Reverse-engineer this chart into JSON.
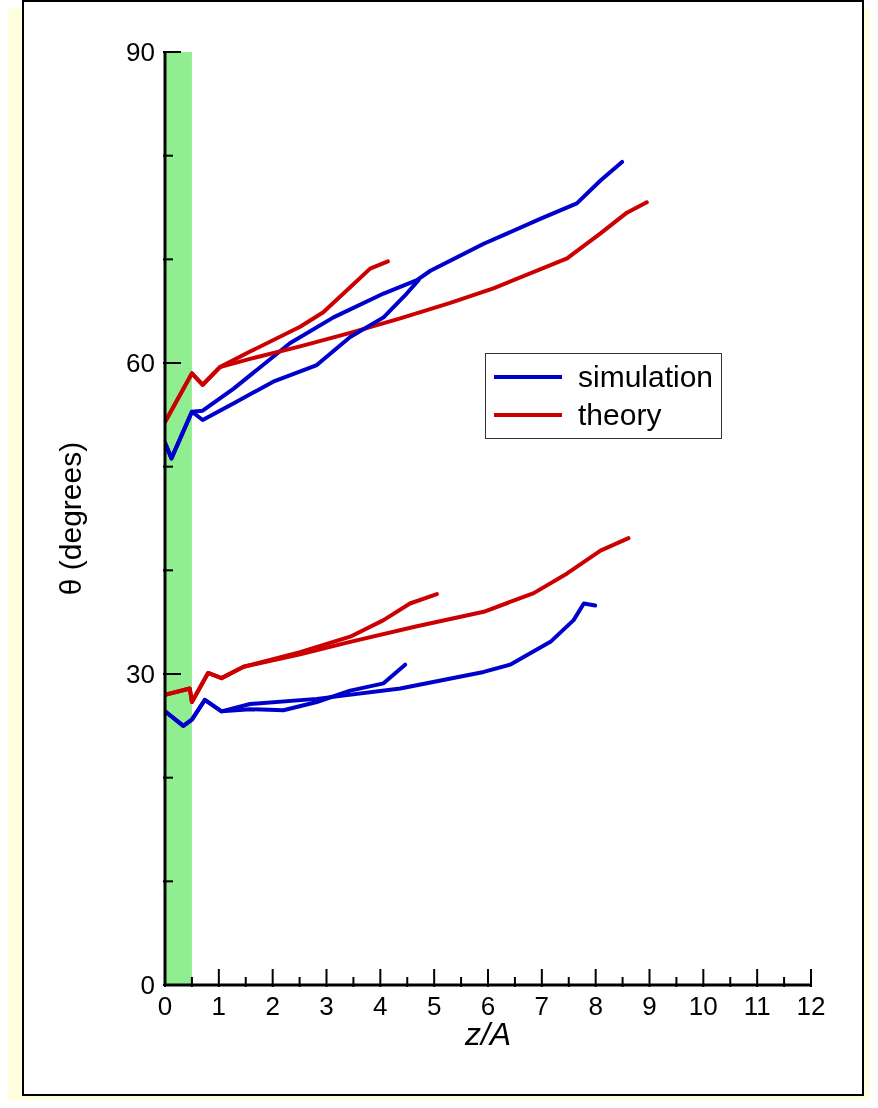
{
  "chart_data": {
    "type": "line",
    "xlabel": "z/A",
    "ylabel": "θ (degrees)",
    "xlim": [
      0,
      12
    ],
    "ylim": [
      0,
      90
    ],
    "xticks": [
      0,
      {
        "value": 0.5,
        "label": null
      },
      1,
      {
        "value": 1.5,
        "label": null
      },
      2,
      {
        "value": 2.5,
        "label": null
      },
      3,
      {
        "value": 3.5,
        "label": null
      },
      4,
      {
        "value": 4.5,
        "label": null
      },
      5,
      {
        "value": 5.5,
        "label": null
      },
      6,
      {
        "value": 6.5,
        "label": null
      },
      7,
      {
        "value": 7.5,
        "label": null
      },
      8,
      {
        "value": 8.5,
        "label": null
      },
      9,
      {
        "value": 9.5,
        "label": null
      },
      10,
      {
        "value": 10.5,
        "label": null
      },
      11,
      {
        "value": 11.5,
        "label": null
      },
      12
    ],
    "yticks": [
      0,
      {
        "value": 10,
        "label": null
      },
      {
        "value": 20,
        "label": null
      },
      30,
      {
        "value": 40,
        "label": null
      },
      {
        "value": 50,
        "label": null
      },
      60,
      {
        "value": 70,
        "label": null
      },
      {
        "value": 80,
        "label": null
      },
      90
    ],
    "legend": "right",
    "grid": false,
    "marker": "none",
    "line_style": "solid",
    "bands": [
      {
        "axis": "x",
        "from": 0,
        "to": 0.5,
        "color": "#90ee90"
      }
    ],
    "series": [
      {
        "name": "simulation",
        "color": "#0000cc",
        "x": [
          0,
          0.12,
          0.5,
          0.7,
          1.27,
          2.32,
          3.13,
          4.06,
          4.68,
          4.93,
          5.92,
          6.97,
          7.65,
          8.09,
          8.49
        ],
        "values": [
          52.3,
          50.8,
          55.3,
          55.4,
          57.5,
          61.9,
          64.4,
          66.7,
          68.0,
          68.9,
          71.5,
          73.9,
          75.4,
          77.6,
          79.4
        ]
      },
      {
        "name": "theory",
        "color": "#cc0000",
        "x": [
          0,
          0.5,
          0.7,
          1.02,
          1.58,
          2.51,
          3.44,
          4.37,
          5.3,
          6.1,
          7.47,
          8.09,
          8.58,
          8.95
        ],
        "values": [
          54.3,
          59.0,
          57.9,
          59.6,
          60.4,
          61.6,
          62.9,
          64.3,
          65.8,
          67.2,
          70.1,
          72.5,
          74.5,
          75.5
        ]
      },
      {
        "color": "#0000cc",
        "x": [
          0,
          0.12,
          0.5,
          0.7,
          1.27,
          2.01,
          2.82,
          3.44,
          4.06,
          4.49,
          4.71
        ],
        "values": [
          52.3,
          50.8,
          55.3,
          54.5,
          56.1,
          58.2,
          59.8,
          62.5,
          64.4,
          66.7,
          68.0
        ]
      },
      {
        "color": "#cc0000",
        "x": [
          0,
          0.5,
          0.7,
          1.02,
          1.58,
          2.51,
          2.94,
          3.44,
          3.81,
          4.14
        ],
        "values": [
          54.3,
          59.0,
          57.9,
          59.6,
          61.1,
          63.5,
          64.9,
          67.3,
          69.1,
          69.8
        ]
      },
      {
        "color": "#0000cc",
        "x": [
          0,
          0.34,
          0.5,
          0.74,
          1.05,
          1.58,
          2.82,
          4.37,
          5.92,
          6.41,
          7.16,
          7.59,
          7.78,
          7.99
        ],
        "values": [
          26.4,
          25.0,
          25.6,
          27.5,
          26.4,
          27.1,
          27.6,
          28.6,
          30.2,
          30.9,
          33.1,
          35.2,
          36.8,
          36.6
        ]
      },
      {
        "color": "#0000cc",
        "x": [
          0,
          0.34,
          0.5,
          0.74,
          1.05,
          1.58,
          2.2,
          2.82,
          3.44,
          4.06,
          4.46
        ],
        "values": [
          26.4,
          25.0,
          25.6,
          27.5,
          26.4,
          26.6,
          26.5,
          27.3,
          28.4,
          29.1,
          30.9
        ]
      },
      {
        "color": "#cc0000",
        "x": [
          0,
          0.46,
          0.5,
          0.8,
          1.05,
          1.46,
          2.51,
          3.44,
          4.68,
          5.92,
          6.85,
          7.47,
          8.09,
          8.61
        ],
        "values": [
          28.0,
          28.6,
          27.3,
          30.1,
          29.6,
          30.7,
          31.9,
          33.1,
          34.6,
          36.0,
          37.8,
          39.7,
          41.9,
          43.1
        ]
      },
      {
        "color": "#cc0000",
        "x": [
          0,
          0.46,
          0.5,
          0.8,
          1.05,
          1.46,
          2.51,
          3.44,
          4.06,
          4.55,
          5.05
        ],
        "values": [
          28.0,
          28.6,
          27.3,
          30.1,
          29.6,
          30.7,
          32.1,
          33.6,
          35.2,
          36.8,
          37.7
        ]
      }
    ]
  }
}
